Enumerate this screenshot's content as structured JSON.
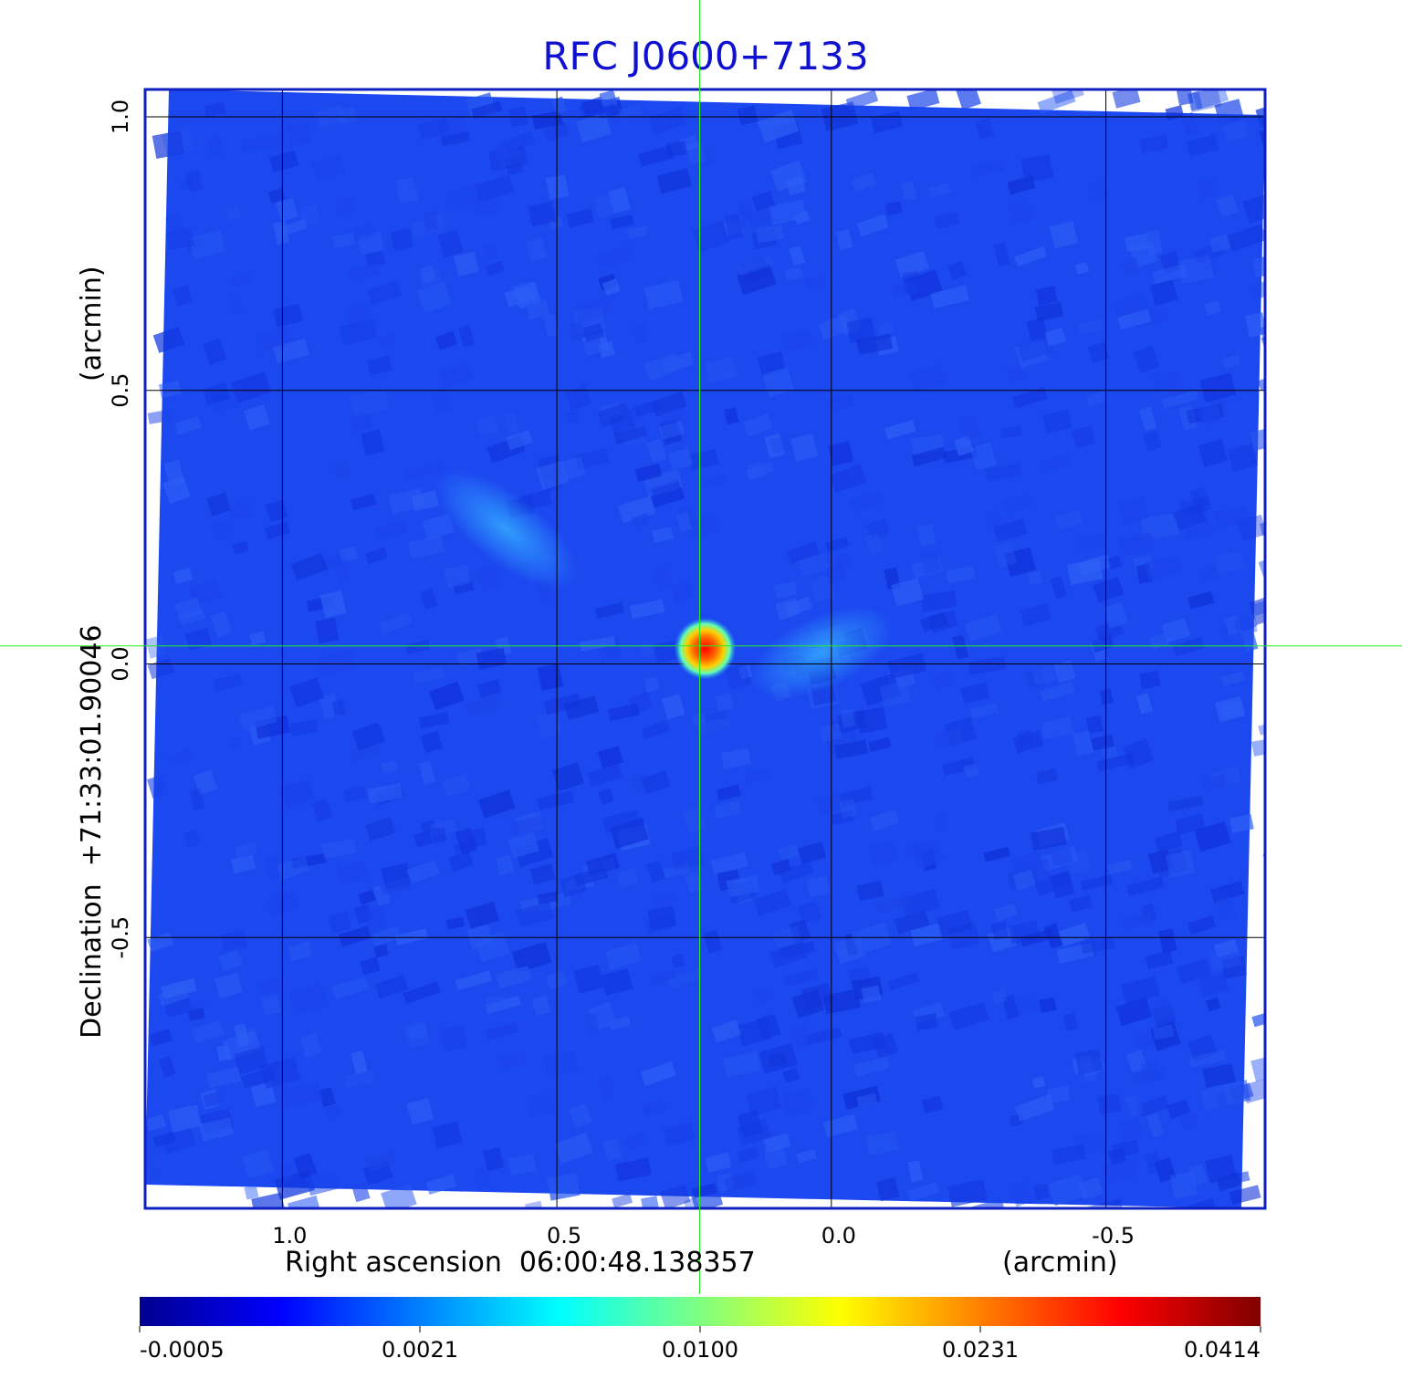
{
  "chart_data": {
    "type": "heatmap",
    "title": "RFC J0600+7133",
    "xlabel": "Right ascension  06:00:48.138357",
    "xunit": "(arcmin)",
    "ylabel": "Declination  +71:33:01.90046",
    "yunit": "(arcmin)",
    "xlim": [
      1.25,
      -0.79
    ],
    "ylim": [
      -0.995,
      1.05
    ],
    "x_ticks": [
      {
        "value": 1.0,
        "label": "1.0"
      },
      {
        "value": 0.5,
        "label": "0.5"
      },
      {
        "value": 0.0,
        "label": "0.0"
      },
      {
        "value": -0.5,
        "label": "-0.5"
      }
    ],
    "y_ticks": [
      {
        "value": 1.0,
        "label": "1.0"
      },
      {
        "value": 0.5,
        "label": "0.5"
      },
      {
        "value": 0.0,
        "label": "0.0"
      },
      {
        "value": -0.5,
        "label": "-0.5"
      }
    ],
    "grid": true,
    "crosshair": {
      "x": 0.24,
      "y": 0.033,
      "color": "#22ee22"
    },
    "source_peak": {
      "x": 0.23,
      "y": 0.028,
      "value": 0.0414
    },
    "colorbar": {
      "ticks": [
        "-0.0005",
        "0.0021",
        "0.0100",
        "0.0231",
        "0.0414"
      ],
      "colors": [
        "#00008f",
        "#0000ff",
        "#0080ff",
        "#00ffff",
        "#80ff80",
        "#ffff00",
        "#ff8000",
        "#ff0000",
        "#800000"
      ]
    },
    "background_color": "#1c48f0",
    "frame_color": "#1020c0",
    "title_color": "#1010d0"
  }
}
